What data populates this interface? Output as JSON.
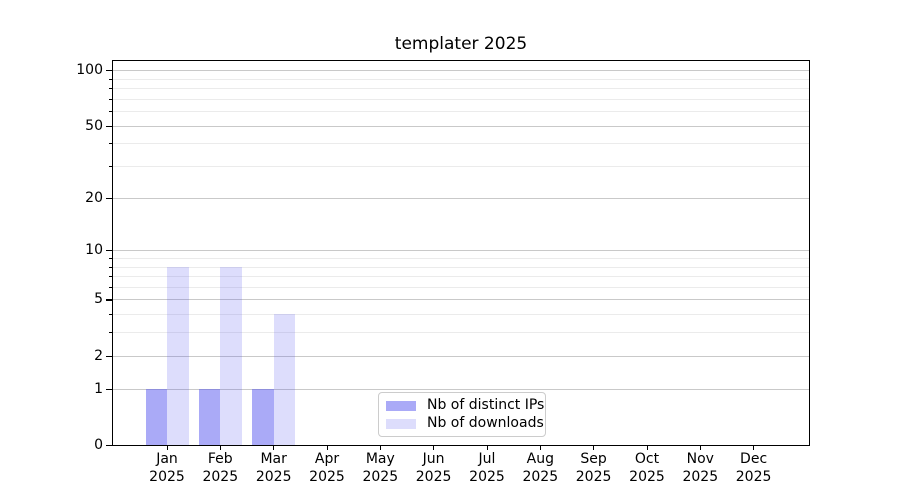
{
  "chart_data": {
    "type": "bar",
    "title": "templater 2025",
    "categories": [
      "Jan 2025",
      "Feb 2025",
      "Mar 2025",
      "Apr 2025",
      "May 2025",
      "Jun 2025",
      "Jul 2025",
      "Aug 2025",
      "Sep 2025",
      "Oct 2025",
      "Nov 2025",
      "Dec 2025"
    ],
    "series": [
      {
        "name": "Nb of distinct IPs",
        "color": "#5555f0",
        "alpha": 0.5,
        "values": [
          1,
          1,
          1,
          0,
          0,
          0,
          0,
          0,
          0,
          0,
          0,
          0
        ]
      },
      {
        "name": "Nb of downloads",
        "color": "#5555f0",
        "alpha": 0.2,
        "values": [
          8,
          8,
          4,
          0,
          0,
          0,
          0,
          0,
          0,
          0,
          0,
          0
        ]
      }
    ],
    "yscale": "log1p",
    "ylim": [
      0,
      100
    ],
    "y_major_ticks": [
      0,
      1,
      2,
      5,
      10,
      20,
      50,
      100
    ],
    "y_minor_ticks": [
      3,
      4,
      6,
      7,
      8,
      9,
      30,
      40,
      60,
      70,
      80,
      90
    ],
    "grid": true,
    "legend_position": "lower center",
    "background_color": "#ffffff",
    "major_grid_color": "#c9c9c9",
    "minor_grid_color": "#ebebeb"
  }
}
